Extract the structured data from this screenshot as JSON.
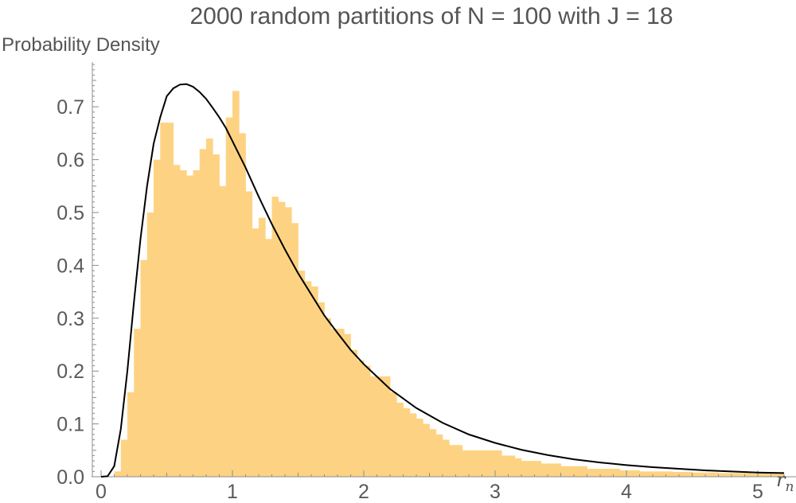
{
  "chart_data": {
    "type": "bar",
    "title": "2000 random partitions of N = 100 with J = 18",
    "ylabel": "Probability Density",
    "xlabel": "r",
    "xlabel_subscript": "n",
    "xlim": [
      0,
      5.25
    ],
    "ylim": [
      0,
      0.77
    ],
    "x_ticks": [
      0,
      1,
      2,
      3,
      4,
      5
    ],
    "y_ticks": [
      0.0,
      0.1,
      0.2,
      0.3,
      0.4,
      0.5,
      0.6,
      0.7
    ],
    "y_tick_labels": [
      "0.0",
      "0.1",
      "0.2",
      "0.3",
      "0.4",
      "0.5",
      "0.6",
      "0.7"
    ],
    "grid": false,
    "bar_color": "#fdd383",
    "line_color": "#000000",
    "histogram": {
      "bin_start": 0,
      "bin_width": 0.05,
      "values": [
        0,
        0,
        0.01,
        0.07,
        0.16,
        0.28,
        0.41,
        0.5,
        0.6,
        0.67,
        0.67,
        0.59,
        0.58,
        0.57,
        0.58,
        0.62,
        0.64,
        0.61,
        0.55,
        0.68,
        0.73,
        0.65,
        0.54,
        0.47,
        0.49,
        0.45,
        0.53,
        0.52,
        0.51,
        0.48,
        0.39,
        0.37,
        0.36,
        0.33,
        0.3,
        0.28,
        0.28,
        0.27,
        0.24,
        0.22,
        0.21,
        0.19,
        0.19,
        0.19,
        0.16,
        0.14,
        0.13,
        0.12,
        0.11,
        0.1,
        0.09,
        0.08,
        0.07,
        0.06,
        0.06,
        0.05,
        0.05,
        0.05,
        0.05,
        0.05,
        0.05,
        0.04,
        0.04,
        0.035,
        0.03,
        0.03,
        0.03,
        0.025,
        0.025,
        0.025,
        0.02,
        0.02,
        0.02,
        0.02,
        0.015,
        0.015,
        0.015,
        0.015,
        0.015,
        0.012,
        0.012,
        0.012,
        0.01,
        0.01,
        0.01,
        0.01,
        0.01,
        0.009,
        0.009,
        0.009,
        0.008,
        0.008,
        0.008,
        0.008,
        0.007,
        0.007,
        0.007,
        0.007,
        0.007,
        0.006,
        0.006,
        0.006,
        0.006,
        0.006
      ]
    },
    "density_curve": {
      "x": [
        0,
        0.05,
        0.1,
        0.15,
        0.2,
        0.25,
        0.3,
        0.35,
        0.4,
        0.45,
        0.5,
        0.55,
        0.6,
        0.65,
        0.7,
        0.75,
        0.8,
        0.85,
        0.9,
        0.95,
        1.0,
        1.1,
        1.2,
        1.3,
        1.4,
        1.5,
        1.6,
        1.7,
        1.8,
        1.9,
        2.0,
        2.2,
        2.4,
        2.6,
        2.8,
        3.0,
        3.2,
        3.4,
        3.6,
        3.8,
        4.0,
        4.2,
        4.4,
        4.6,
        4.8,
        5.0,
        5.2
      ],
      "y": [
        0,
        0.001,
        0.02,
        0.09,
        0.2,
        0.33,
        0.45,
        0.55,
        0.63,
        0.68,
        0.72,
        0.735,
        0.742,
        0.743,
        0.738,
        0.728,
        0.715,
        0.698,
        0.68,
        0.66,
        0.635,
        0.585,
        0.53,
        0.478,
        0.43,
        0.385,
        0.345,
        0.305,
        0.272,
        0.24,
        0.213,
        0.166,
        0.13,
        0.102,
        0.08,
        0.064,
        0.051,
        0.041,
        0.033,
        0.027,
        0.022,
        0.018,
        0.015,
        0.012,
        0.01,
        0.008,
        0.007
      ]
    }
  }
}
